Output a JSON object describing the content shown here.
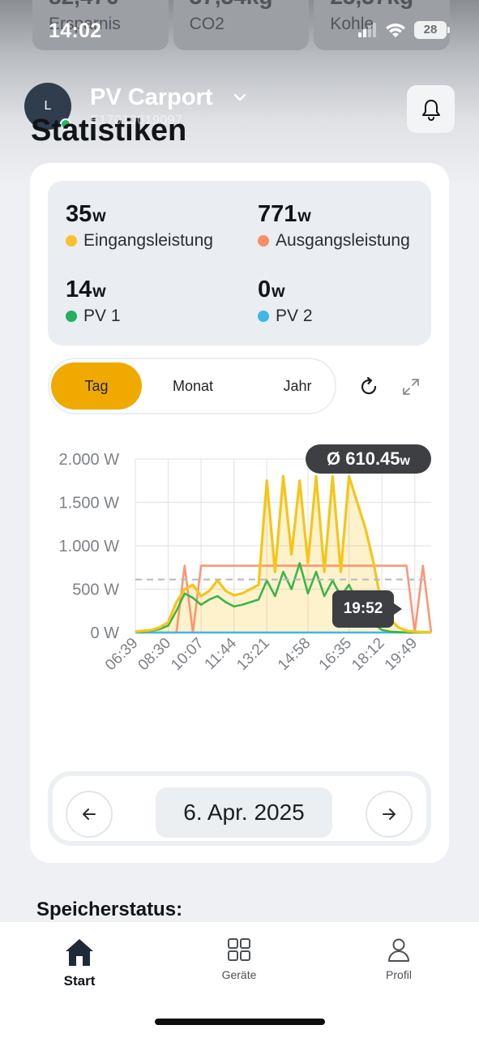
{
  "status_bar": {
    "time": "14:02",
    "battery": "28"
  },
  "summary_cards": [
    {
      "value": "82,47€",
      "label": "Ersparnis"
    },
    {
      "value": "37,34kg",
      "label": "CO2"
    },
    {
      "value": "25,37kg",
      "label": "Kohle"
    }
  ],
  "header": {
    "avatar_initial": "L",
    "device_name": "PV Carport",
    "device_serial": "E17010019097",
    "page_title": "Statistiken"
  },
  "stats": [
    {
      "value": "35",
      "unit": "w",
      "label": "Eingangsleistung",
      "color": "#fbc02d"
    },
    {
      "value": "771",
      "unit": "w",
      "label": "Ausgangsleistung",
      "color": "#fb8c66"
    },
    {
      "value": "14",
      "unit": "w",
      "label": "PV 1",
      "color": "#27ae60"
    },
    {
      "value": "0",
      "unit": "w",
      "label": "PV 2",
      "color": "#3fb6ea"
    }
  ],
  "period_tabs": [
    {
      "label": "Tag",
      "active": true
    },
    {
      "label": "Monat",
      "active": false
    },
    {
      "label": "Jahr",
      "active": false
    }
  ],
  "chart_data": {
    "type": "area",
    "x": [
      "06:39",
      "07:08",
      "07:30",
      "08:00",
      "08:30",
      "09:00",
      "09:20",
      "09:45",
      "10:07",
      "10:30",
      "11:00",
      "11:20",
      "11:44",
      "12:10",
      "12:40",
      "13:00",
      "13:21",
      "13:40",
      "14:00",
      "14:20",
      "14:40",
      "14:58",
      "15:20",
      "15:40",
      "16:00",
      "16:20",
      "16:35",
      "17:00",
      "17:20",
      "17:40",
      "18:12",
      "18:40",
      "19:00",
      "19:20",
      "19:49",
      "20:15",
      "20:45"
    ],
    "series": [
      {
        "name": "Eingangsleistung",
        "color": "#f5c518",
        "values": [
          10,
          20,
          30,
          60,
          120,
          350,
          500,
          550,
          420,
          480,
          600,
          480,
          430,
          450,
          500,
          550,
          1750,
          700,
          1800,
          900,
          1750,
          800,
          1800,
          700,
          1800,
          700,
          1800,
          1500,
          1200,
          800,
          300,
          150,
          60,
          20,
          10,
          5,
          5
        ]
      },
      {
        "name": "Ausgangsleistung",
        "color": "#fb8c66",
        "values": [
          0,
          0,
          0,
          0,
          0,
          0,
          770,
          0,
          770,
          770,
          770,
          770,
          770,
          770,
          770,
          770,
          770,
          770,
          770,
          770,
          770,
          770,
          770,
          770,
          770,
          770,
          770,
          770,
          770,
          770,
          770,
          770,
          770,
          770,
          0,
          770,
          0
        ]
      },
      {
        "name": "PV 1",
        "color": "#3cb54a",
        "values": [
          5,
          10,
          20,
          40,
          80,
          250,
          450,
          400,
          320,
          380,
          420,
          350,
          300,
          320,
          350,
          380,
          600,
          420,
          700,
          500,
          800,
          450,
          700,
          420,
          600,
          420,
          550,
          350,
          200,
          100,
          30,
          10,
          5,
          0,
          0,
          0,
          0
        ]
      },
      {
        "name": "PV 2",
        "color": "#3fb6ea",
        "values": [
          0,
          0,
          0,
          0,
          0,
          0,
          0,
          0,
          0,
          0,
          0,
          0,
          0,
          0,
          0,
          0,
          0,
          0,
          0,
          0,
          0,
          0,
          0,
          0,
          0,
          0,
          0,
          0,
          0,
          0,
          0,
          0,
          0,
          0,
          0,
          0,
          0
        ]
      }
    ],
    "x_tick_labels": [
      "06:39",
      "08:30",
      "10:07",
      "11:44",
      "13:21",
      "14:58",
      "16:35",
      "18:12",
      "19:49"
    ],
    "y_ticks": [
      0,
      500,
      1000,
      1500,
      2000
    ],
    "y_tick_labels": [
      "0 W",
      "500 W",
      "1.000 W",
      "1.500 W",
      "2.000 W"
    ],
    "ylim": [
      0,
      2000
    ],
    "average": 610.45,
    "average_label": "Ø 610.45",
    "average_unit": "w",
    "tooltip_time": "19:52",
    "grid": true
  },
  "date_nav": {
    "date": "6. Apr. 2025"
  },
  "section_title": "Speicherstatus:",
  "bottom_nav": [
    {
      "label": "Start",
      "active": true
    },
    {
      "label": "Geräte",
      "active": false
    },
    {
      "label": "Profil",
      "active": false
    }
  ]
}
